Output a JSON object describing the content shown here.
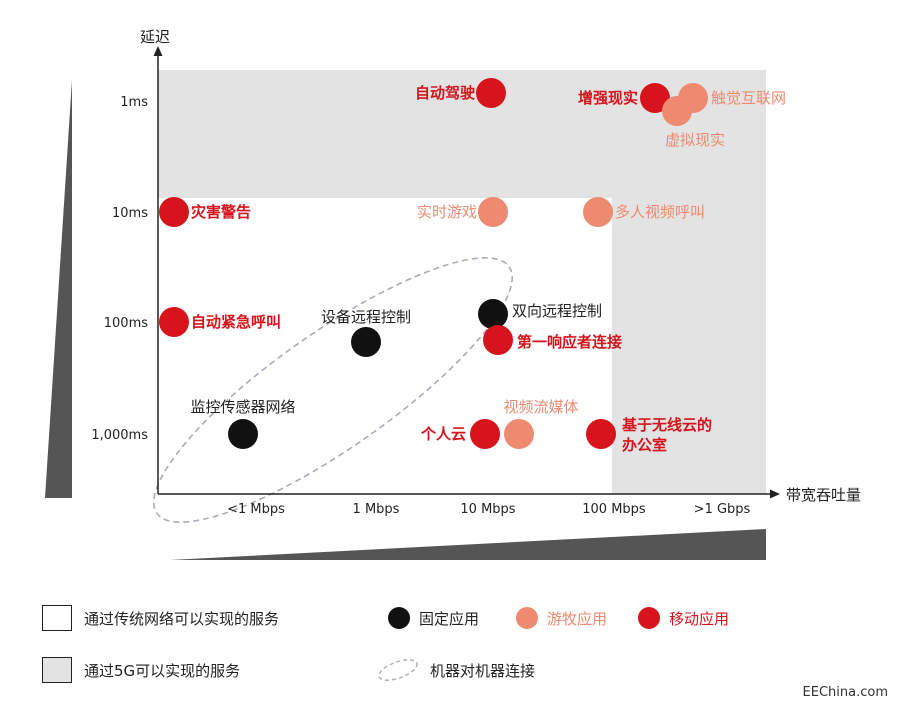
{
  "chart_data": {
    "type": "scatter",
    "xlabel": "带宽吞吐量",
    "ylabel": "延迟",
    "x_ticks": [
      "<1 Mbps",
      "1 Mbps",
      "10 Mbps",
      "100 Mbps",
      ">1 Gbps"
    ],
    "y_ticks": [
      "1ms",
      "10ms",
      "100ms",
      "1,000ms"
    ],
    "points": [
      {
        "label": "自动驾驶",
        "category": "mobile",
        "x": "10 Mbps",
        "y": "1ms"
      },
      {
        "label": "增强现实",
        "category": "mobile",
        "x": "100 Mbps",
        "y": "1ms"
      },
      {
        "label": "触觉互联网",
        "category": "gaming",
        "x": ">1 Gbps",
        "y": "1ms"
      },
      {
        "label": "虚拟现实",
        "category": "gaming",
        "x": ">1 Gbps",
        "y": "1ms"
      },
      {
        "label": "灾害警告",
        "category": "mobile",
        "x": "<1 Mbps",
        "y": "10ms"
      },
      {
        "label": "实时游戏",
        "category": "gaming",
        "x": "10 Mbps",
        "y": "10ms"
      },
      {
        "label": "多人视频呼叫",
        "category": "gaming",
        "x": "100 Mbps",
        "y": "10ms"
      },
      {
        "label": "自动紧急呼叫",
        "category": "mobile",
        "x": "<1 Mbps",
        "y": "100ms"
      },
      {
        "label": "设备远程控制",
        "category": "fixed",
        "x": "1 Mbps",
        "y": "100ms"
      },
      {
        "label": "双向远程控制",
        "category": "fixed",
        "x": "10 Mbps",
        "y": "100ms"
      },
      {
        "label": "第一响应者连接",
        "category": "mobile",
        "x": "10 Mbps",
        "y": "100ms"
      },
      {
        "label": "监控传感器网络",
        "category": "fixed",
        "x": "<1 Mbps",
        "y": "1,000ms"
      },
      {
        "label": "个人云",
        "category": "mobile",
        "x": "10 Mbps",
        "y": "1,000ms"
      },
      {
        "label": "视频流媒体",
        "category": "gaming",
        "x": "10 Mbps",
        "y": "1,000ms"
      },
      {
        "label": "基于无线云的\n办公室",
        "category": "mobile",
        "x": "100 Mbps",
        "y": "1,000ms"
      }
    ],
    "legend": {
      "traditional": "通过传统网络可以实现的服务",
      "fiveg": "通过5G可以实现的服务",
      "fixed": "固定应用",
      "gaming": "游牧应用",
      "mobile": "移动应用",
      "m2m": "机器对机器连接"
    }
  },
  "colors": {
    "fixed": "#111111",
    "gaming": "#ee8a70",
    "mobile": "#d7131c",
    "gray_region": "#e3e3e3",
    "axis": "#222222",
    "wedge": "#555555",
    "m2m_ellipse": "#b0a9b6"
  },
  "watermark": "EEChina.com"
}
